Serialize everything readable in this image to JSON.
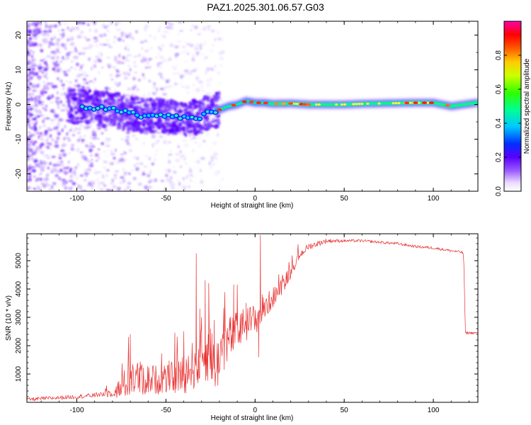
{
  "title": "PAZ1.2025.301.06.57.G03",
  "colors": {
    "snr_line": "#e83030",
    "axes": "#000000",
    "background": "#ffffff"
  },
  "chart_data": [
    {
      "type": "heatmap",
      "name": "spectrogram",
      "xlabel": "Height of straight line (km)",
      "ylabel": "Frequency (Hz)",
      "xlim": [
        -128,
        125
      ],
      "ylim": [
        -25,
        24
      ],
      "xticks": [
        -100,
        -50,
        0,
        50,
        100
      ],
      "xtick_labels": [
        "-100",
        "-50",
        "0",
        "50",
        "100"
      ],
      "yticks": [
        -20,
        -10,
        0,
        10,
        20
      ],
      "ytick_labels": [
        "-20",
        "-10",
        "0",
        "10",
        "20"
      ],
      "ridge": {
        "x": [
          -97,
          -90,
          -80,
          -70,
          -60,
          -50,
          -40,
          -30,
          -25,
          -20,
          -15,
          -10,
          -5,
          0,
          5,
          10,
          20,
          30,
          40,
          50,
          60,
          70,
          80,
          90,
          100,
          110,
          120,
          125
        ],
        "y": [
          -0.5,
          -1,
          -1.5,
          -2.5,
          -3.5,
          -3,
          -4,
          -3.5,
          -2,
          -1.5,
          -0.5,
          0,
          1,
          0.5,
          0.5,
          0.2,
          0.3,
          0,
          0,
          0,
          0.2,
          0.3,
          0.4,
          0.5,
          0.5,
          -0.5,
          0.2,
          0.5
        ]
      },
      "colorbar": {
        "label": "Normalized spectral amplitude",
        "range": [
          0,
          1
        ],
        "ticks": [
          0.0,
          0.2,
          0.4,
          0.6,
          0.8
        ],
        "tick_labels": [
          "0.0",
          "0.2",
          "0.4",
          "0.6",
          "0.8"
        ]
      }
    },
    {
      "type": "line",
      "name": "snr",
      "xlabel": "Height of straight line (km)",
      "ylabel": "SNR (10 * v/v)",
      "xlim": [
        -128,
        125
      ],
      "ylim": [
        0,
        5950
      ],
      "xticks": [
        -100,
        -50,
        0,
        50,
        100
      ],
      "xtick_labels": [
        "-100",
        "-50",
        "0",
        "50",
        "100"
      ],
      "yticks": [
        1000,
        2000,
        3000,
        4000,
        5000
      ],
      "ytick_labels": [
        "1000",
        "2000",
        "3000",
        "4000",
        "5000"
      ],
      "envelope": {
        "x": [
          -128,
          -100,
          -90,
          -80,
          -75,
          -70,
          -60,
          -50,
          -40,
          -35,
          -30,
          -25,
          -22,
          -20,
          -15,
          -10,
          -5,
          0,
          5,
          10,
          15,
          20,
          25,
          30,
          40,
          50,
          60,
          70,
          80,
          90,
          100,
          110,
          116,
          117,
          118,
          125
        ],
        "y": [
          100,
          200,
          250,
          350,
          500,
          900,
          800,
          800,
          1000,
          1300,
          1600,
          1800,
          1000,
          1800,
          2200,
          2500,
          2800,
          2900,
          3300,
          3700,
          4100,
          4600,
          5200,
          5500,
          5700,
          5700,
          5700,
          5650,
          5600,
          5500,
          5450,
          5350,
          5300,
          5200,
          2450,
          2450
        ]
      },
      "noise": {
        "x": [
          -128,
          -90,
          -80,
          -70,
          -60,
          -50,
          -40,
          -30,
          -20,
          -10,
          0,
          10,
          20,
          30,
          50,
          118,
          125
        ],
        "amplitude": [
          80,
          100,
          200,
          900,
          700,
          600,
          900,
          1300,
          1200,
          900,
          700,
          450,
          300,
          200,
          80,
          80,
          60
        ]
      },
      "spikes": {
        "x": [
          -70,
          -71,
          -45,
          -40,
          -33,
          -31,
          -30,
          -28,
          -26,
          -25,
          -23,
          -12,
          -10,
          -5,
          3,
          4,
          2
        ],
        "y": [
          2400,
          2300,
          2450,
          2500,
          5250,
          3300,
          3000,
          4300,
          4200,
          2600,
          2900,
          4150,
          4150,
          3500,
          5900,
          3800,
          1600
        ]
      }
    }
  ]
}
